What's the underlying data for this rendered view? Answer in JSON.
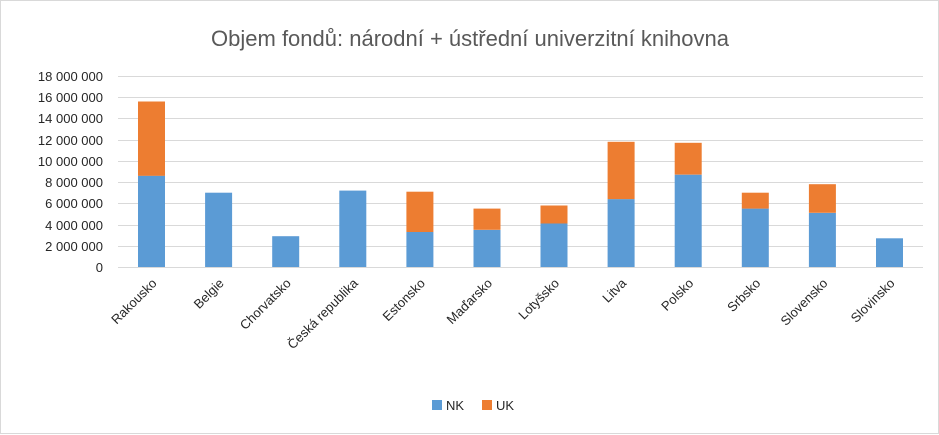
{
  "chart_data": {
    "type": "bar",
    "stacked": true,
    "title": "Objem fondů: národní + ústřední univerzitní knihovna",
    "categories": [
      "Rakousko",
      "Belgie",
      "Chorvatsko",
      "Česká republika",
      "Estonsko",
      "Maďarsko",
      "Lotyšsko",
      "Litva",
      "Polsko",
      "Srbsko",
      "Slovensko",
      "Slovinsko"
    ],
    "series": [
      {
        "name": "NK",
        "color": "#5b9bd5",
        "values": [
          8600000,
          7000000,
          2900000,
          7200000,
          3300000,
          3500000,
          4100000,
          6400000,
          8700000,
          5500000,
          5100000,
          2700000
        ]
      },
      {
        "name": "UK",
        "color": "#ed7d31",
        "values": [
          7000000,
          0,
          0,
          0,
          3800000,
          2000000,
          1700000,
          5400000,
          3000000,
          1500000,
          2700000,
          0
        ]
      }
    ],
    "ylim": [
      0,
      18000000
    ],
    "yticks": [
      0,
      2000000,
      4000000,
      6000000,
      8000000,
      10000000,
      12000000,
      14000000,
      16000000,
      18000000
    ],
    "ytick_labels": [
      "0",
      "2 000 000",
      "4 000 000",
      "6 000 000",
      "8 000 000",
      "10 000 000",
      "12 000 000",
      "14 000 000",
      "16 000 000",
      "18 000 000"
    ],
    "grid": true,
    "legend_position": "bottom"
  }
}
